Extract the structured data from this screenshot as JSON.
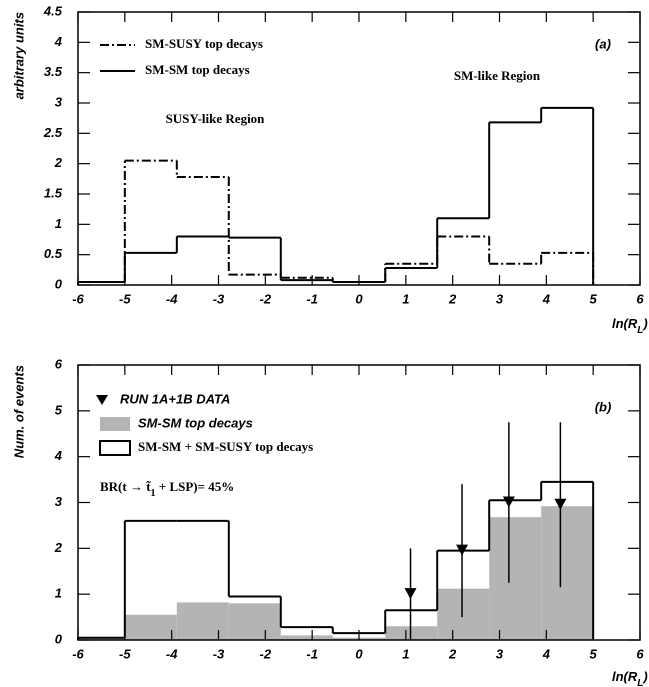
{
  "chart_data": [
    {
      "type": "histogram",
      "panel_label": "(a)",
      "y_label": "arbitrary units",
      "x_label": [
        "ln(R",
        "L",
        ")"
      ],
      "annotations": [
        "SM-like Region",
        "SUSY-like Region"
      ],
      "bins": [
        -6,
        -5,
        -3.89,
        -2.78,
        -1.67,
        -0.56,
        0.56,
        1.67,
        2.78,
        3.89,
        5
      ],
      "series": [
        {
          "name": "SM-SUSY top decays",
          "color": "#000000",
          "style": "dashdot",
          "values": [
            0.05,
            2.05,
            1.78,
            0.17,
            0.12,
            0.05,
            0.35,
            0.8,
            0.35,
            0.53
          ]
        },
        {
          "name": "SM-SM top decays",
          "color": "#000000",
          "style": "solid",
          "values": [
            0.05,
            0.53,
            0.8,
            0.78,
            0.08,
            0.05,
            0.28,
            1.1,
            2.68,
            2.92
          ]
        }
      ],
      "xlim": [
        -6,
        6
      ],
      "xticks": [
        -6,
        -5,
        -4,
        -3,
        -2,
        -1,
        0,
        1,
        2,
        3,
        4,
        5,
        6
      ],
      "ylim": [
        0,
        4.5
      ],
      "yticks": [
        0,
        0.5,
        1,
        1.5,
        2,
        2.5,
        3,
        3.5,
        4,
        4.5
      ]
    },
    {
      "type": "histogram",
      "panel_label": "(b)",
      "y_label": "Num. of events",
      "x_label": [
        "ln(R",
        "L",
        ")"
      ],
      "note": [
        "BR(t → t̃",
        "1",
        " + LSP)= 45%"
      ],
      "bins": [
        -6,
        -5,
        -3.89,
        -2.78,
        -1.67,
        -0.56,
        0.56,
        1.67,
        2.78,
        3.89,
        5
      ],
      "series": [
        {
          "name": "RUN 1A+1B DATA",
          "color": "#000000",
          "style": "points",
          "x": [
            1.1,
            2.2,
            3.2,
            4.3
          ],
          "values": [
            1.0,
            1.95,
            3.0,
            2.95
          ],
          "errors": [
            1.0,
            1.45,
            1.75,
            1.8
          ]
        },
        {
          "name": "SM-SM top decays",
          "color": "#b4b4b4",
          "style": "filled",
          "values": [
            0.05,
            0.55,
            0.82,
            0.8,
            0.1,
            0.05,
            0.3,
            1.12,
            2.68,
            2.92
          ]
        },
        {
          "name": "SM-SM + SM-SUSY top decays",
          "color": "#000000",
          "style": "outline",
          "values": [
            0.05,
            2.6,
            2.6,
            0.95,
            0.28,
            0.15,
            0.65,
            1.95,
            3.05,
            3.45
          ]
        }
      ],
      "xlim": [
        -6,
        6
      ],
      "xticks": [
        -6,
        -5,
        -4,
        -3,
        -2,
        -1,
        0,
        1,
        2,
        3,
        4,
        5,
        6
      ],
      "ylim": [
        0,
        6
      ],
      "yticks": [
        0,
        1,
        2,
        3,
        4,
        5,
        6
      ]
    }
  ]
}
